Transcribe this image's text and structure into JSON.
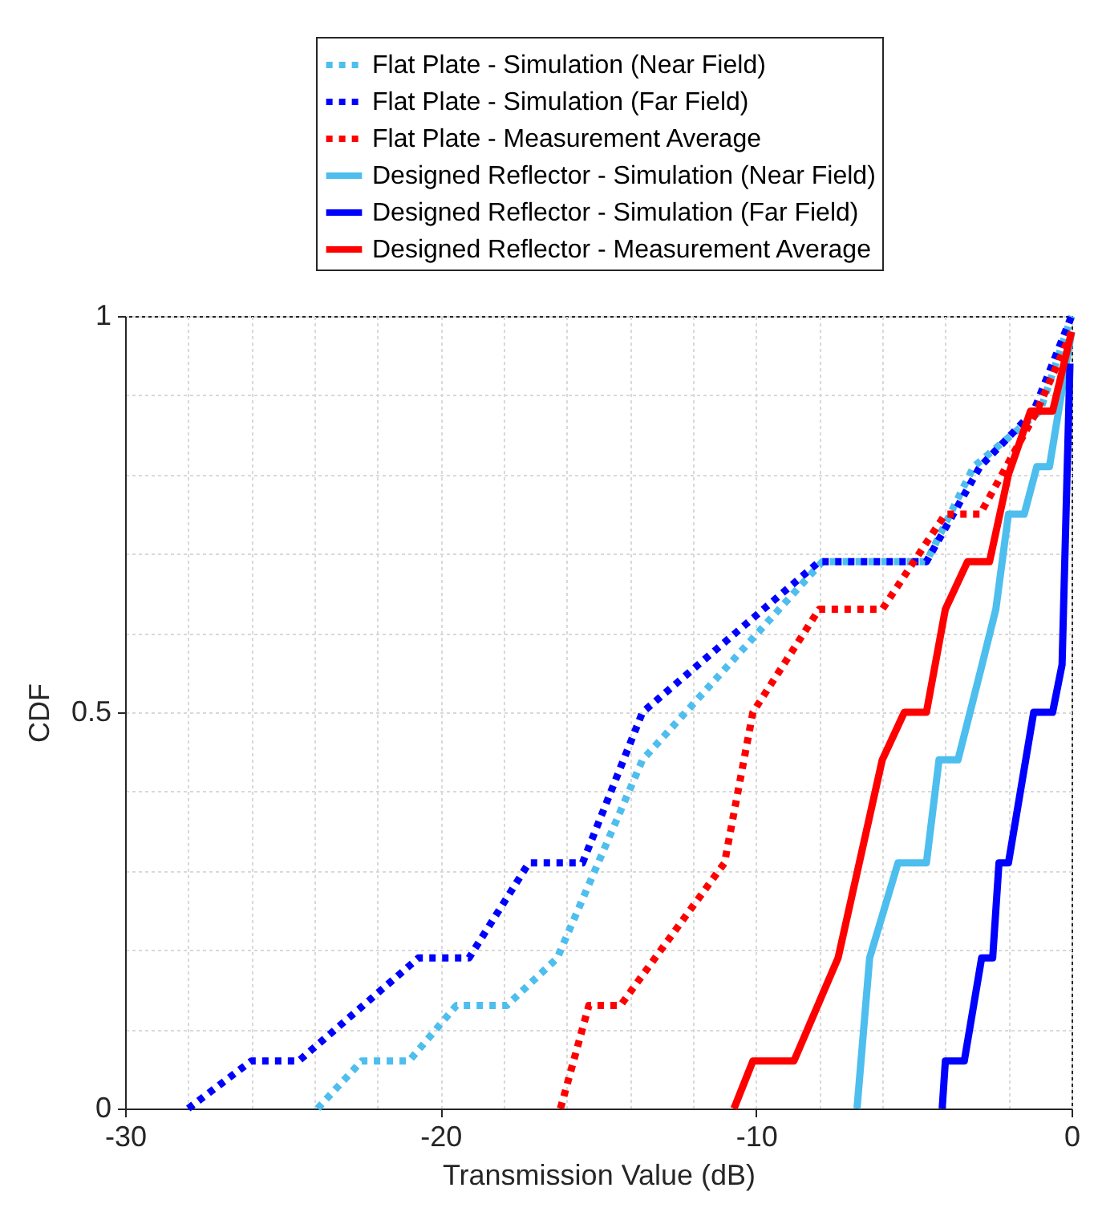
{
  "chart_data": {
    "type": "line",
    "xlabel": "Transmission Value (dB)",
    "ylabel": "CDF",
    "xlim": [
      -30,
      0
    ],
    "ylim": [
      0,
      1
    ],
    "xticks": [
      -30,
      {
        "value": -28,
        "label": null
      },
      {
        "value": -26,
        "label": null
      },
      {
        "value": -24,
        "label": null
      },
      {
        "value": -22,
        "label": null
      },
      -20,
      {
        "value": -18,
        "label": null
      },
      {
        "value": -16,
        "label": null
      },
      {
        "value": -14,
        "label": null
      },
      {
        "value": -12,
        "label": null
      },
      -10,
      {
        "value": -8,
        "label": null
      },
      {
        "value": -6,
        "label": null
      },
      {
        "value": -4,
        "label": null
      },
      {
        "value": -2,
        "label": null
      },
      0
    ],
    "yticks": [
      0,
      {
        "value": 0.1,
        "label": null
      },
      {
        "value": 0.2,
        "label": null
      },
      {
        "value": 0.3,
        "label": null
      },
      {
        "value": 0.4,
        "label": null
      },
      0.5,
      {
        "value": 0.6,
        "label": null
      },
      {
        "value": 0.7,
        "label": null
      },
      {
        "value": 0.8,
        "label": null
      },
      {
        "value": 0.9,
        "label": null
      },
      1
    ],
    "grid": true,
    "legend": "top",
    "series": [
      {
        "name": "Flat Plate - Simulation (Near Field)",
        "color": "#4dbeee",
        "line_style": "dotted",
        "x": [
          -23.9,
          -22.5,
          -21.0,
          -19.5,
          -17.9,
          -16.3,
          -13.6,
          -7.9,
          -4.6,
          -3.1,
          -1.0,
          0
        ],
        "values": [
          0,
          0.06,
          0.06,
          0.13,
          0.13,
          0.19,
          0.44,
          0.69,
          0.69,
          0.81,
          0.88,
          1
        ]
      },
      {
        "name": "Flat Plate - Simulation (Far Field)",
        "color": "#0000ff",
        "line_style": "dotted",
        "x": [
          -28.0,
          -26.0,
          -24.5,
          -20.7,
          -19.1,
          -17.2,
          -15.5,
          -13.6,
          -8.0,
          -4.6,
          -2.9,
          -1.2,
          0
        ],
        "values": [
          0,
          0.06,
          0.06,
          0.19,
          0.19,
          0.31,
          0.31,
          0.5,
          0.69,
          0.69,
          0.81,
          0.88,
          1
        ]
      },
      {
        "name": "Flat Plate - Measurement Average",
        "color": "#ff0000",
        "line_style": "dotted",
        "x": [
          -16.2,
          -15.3,
          -14.3,
          -11.0,
          -10.1,
          -8.0,
          -6.0,
          -4.0,
          -2.9,
          -1.1,
          0
        ],
        "values": [
          0,
          0.13,
          0.13,
          0.31,
          0.5,
          0.63,
          0.63,
          0.75,
          0.75,
          0.88,
          0.98
        ]
      },
      {
        "name": "Designed Reflector - Simulation (Near Field)",
        "color": "#4dbeee",
        "line_style": "solid",
        "x": [
          -6.8,
          -6.4,
          -5.5,
          -4.6,
          -4.2,
          -3.6,
          -2.9,
          -2.4,
          -2.0,
          -1.5,
          -1.1,
          -0.7,
          0
        ],
        "values": [
          0,
          0.19,
          0.31,
          0.31,
          0.44,
          0.44,
          0.55,
          0.63,
          0.75,
          0.75,
          0.81,
          0.81,
          0.98
        ]
      },
      {
        "name": "Designed Reflector - Simulation (Far Field)",
        "color": "#0000ff",
        "line_style": "solid",
        "x": [
          -4.1,
          -4.0,
          -3.4,
          -2.85,
          -2.5,
          -2.3,
          -2.0,
          -1.2,
          -0.6,
          -0.3,
          -0.05
        ],
        "values": [
          0,
          0.06,
          0.06,
          0.19,
          0.19,
          0.31,
          0.31,
          0.5,
          0.5,
          0.56,
          0.94
        ]
      },
      {
        "name": "Designed Reflector - Measurement Average",
        "color": "#ff0000",
        "line_style": "solid",
        "x": [
          -10.7,
          -10.1,
          -8.8,
          -7.4,
          -6.0,
          -5.3,
          -4.6,
          -4.0,
          -3.3,
          -2.6,
          -2.0,
          -1.3,
          -0.6,
          0
        ],
        "values": [
          0,
          0.06,
          0.06,
          0.19,
          0.44,
          0.5,
          0.5,
          0.63,
          0.69,
          0.69,
          0.8,
          0.88,
          0.88,
          0.98
        ]
      }
    ]
  }
}
